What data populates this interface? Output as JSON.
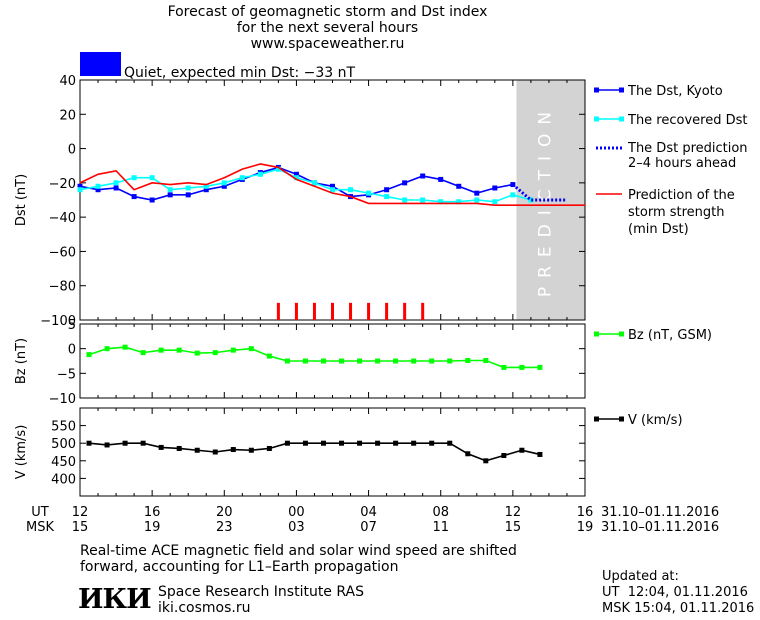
{
  "header": {
    "line1": "Forecast of geomagnetic storm and Dst index",
    "line2": "for the next several hours",
    "line3": "www.spaceweather.ru",
    "status": "Quiet, expected min Dst: −33 nT",
    "status_color": "#0000ff"
  },
  "legend": {
    "dst_kyoto": "The Dst, Kyoto",
    "recovered": "The recovered Dst",
    "pred_line1": "The Dst prediction",
    "pred_line2": "2–4 hours ahead",
    "storm_line1": "Prediction of the",
    "storm_line2": "storm strength",
    "storm_line3": "(min Dst)",
    "bz": "Bz (nT, GSM)",
    "v": "V (km/s)"
  },
  "prediction_label": "PREDICTION",
  "time_axis": {
    "ut_label": "UT",
    "msk_label": "MSK",
    "date_ut": "31.10–01.11.2016",
    "date_msk": "31.10–01.11.2016"
  },
  "footer": {
    "note_line1": "Real-time ACE magnetic field and solar wind speed are shifted",
    "note_line2": "forward, accounting for L1–Earth propagation",
    "institute": "Space Research Institute RAS",
    "site": "iki.cosmos.ru",
    "logo": "ИКИ",
    "updated_label": "Updated at:",
    "updated_ut": "UT  12:04, 01.11.2016",
    "updated_msk": "MSK 15:04, 01.11.2016"
  },
  "chart_data": {
    "type": "line",
    "x_unit": "hours from 12 UT 31.10.2016",
    "x_range": [
      0,
      28
    ],
    "x_ticks": [
      0,
      4,
      8,
      12,
      16,
      20,
      24,
      28
    ],
    "x_tick_labels_ut": [
      "12",
      "16",
      "20",
      "00",
      "04",
      "08",
      "12",
      "16"
    ],
    "x_tick_labels_msk": [
      "15",
      "19",
      "23",
      "03",
      "07",
      "11",
      "15",
      "19"
    ],
    "prediction_zone": [
      24.2,
      28
    ],
    "panels": [
      {
        "id": "dst",
        "ylabel": "Dst (nT)",
        "ylim": [
          -100,
          40
        ],
        "yticks": [
          40,
          20,
          0,
          -20,
          -40,
          -60,
          -80,
          -100
        ],
        "series": [
          {
            "name": "The Dst, Kyoto",
            "color": "#0000ff",
            "style": "line-square",
            "x": [
              0,
              1,
              2,
              3,
              4,
              5,
              6,
              7,
              8,
              9,
              10,
              11,
              12,
              13,
              14,
              15,
              16,
              17,
              18,
              19,
              20,
              21,
              22,
              23,
              24
            ],
            "y": [
              -22,
              -24,
              -23,
              -28,
              -30,
              -27,
              -27,
              -24,
              -22,
              -18,
              -14,
              -11,
              -15,
              -20,
              -22,
              -28,
              -27,
              -24,
              -20,
              -16,
              -18,
              -22,
              -26,
              -23,
              -21
            ]
          },
          {
            "name": "The recovered Dst",
            "color": "#00ffff",
            "style": "line-square",
            "x": [
              0,
              1,
              2,
              3,
              4,
              5,
              6,
              7,
              8,
              9,
              10,
              11,
              12,
              13,
              14,
              15,
              16,
              17,
              18,
              19,
              20,
              21,
              22,
              23,
              24,
              25
            ],
            "y": [
              -24,
              -22,
              -20,
              -17,
              -17,
              -24,
              -23,
              -22,
              -20,
              -17,
              -15,
              -12,
              -17,
              -20,
              -24,
              -24,
              -26,
              -28,
              -30,
              -30,
              -31,
              -31,
              -30,
              -31,
              -27,
              -30
            ]
          },
          {
            "name": "The Dst prediction 2–4 hours ahead",
            "color": "#0000ff",
            "style": "dotted",
            "x": [
              24,
              25,
              26,
              27
            ],
            "y": [
              -21,
              -30,
              -30,
              -30
            ]
          },
          {
            "name": "Prediction of the storm strength (min Dst)",
            "color": "#ff0000",
            "style": "line",
            "x": [
              0,
              1,
              2,
              3,
              4,
              5,
              6,
              7,
              8,
              9,
              10,
              11,
              12,
              13,
              14,
              15,
              16,
              17,
              18,
              19,
              20,
              21,
              22,
              23,
              24,
              28
            ],
            "y": [
              -20,
              -15,
              -13,
              -24,
              -20,
              -21,
              -20,
              -21,
              -17,
              -12,
              -9,
              -11,
              -18,
              -22,
              -26,
              -28,
              -32,
              -32,
              -32,
              -32,
              -32,
              -32,
              -32,
              -33,
              -33,
              -33
            ]
          }
        ],
        "markers": {
          "color": "#ff0000",
          "x": [
            11,
            12,
            13,
            14,
            15,
            16,
            17,
            18,
            19
          ],
          "y_from": -100,
          "y_to": -90
        }
      },
      {
        "id": "bz",
        "ylabel": "Bz (nT)",
        "ylim": [
          -10,
          5
        ],
        "yticks": [
          5,
          0,
          -5,
          -10
        ],
        "series": [
          {
            "name": "Bz (nT, GSM)",
            "color": "#00ff00",
            "style": "line-square",
            "x": [
              0.5,
              1.5,
              2.5,
              3.5,
              4.5,
              5.5,
              6.5,
              7.5,
              8.5,
              9.5,
              10.5,
              11.5,
              12.5,
              13.5,
              14.5,
              15.5,
              16.5,
              17.5,
              18.5,
              19.5,
              20.5,
              21.5,
              22.5,
              23.5,
              24.5,
              25.5
            ],
            "y": [
              -1.2,
              0,
              0.3,
              -0.8,
              -0.3,
              -0.3,
              -0.9,
              -0.8,
              -0.3,
              0,
              -1.5,
              -2.5,
              -2.5,
              -2.5,
              -2.5,
              -2.5,
              -2.5,
              -2.5,
              -2.5,
              -2.5,
              -2.5,
              -2.4,
              -2.4,
              -3.8,
              -3.8,
              -3.8
            ]
          }
        ]
      },
      {
        "id": "v",
        "ylabel": "V (km/s)",
        "ylim": [
          350,
          600
        ],
        "yticks": [
          550,
          500,
          450,
          400
        ],
        "series": [
          {
            "name": "V (km/s)",
            "color": "#000000",
            "style": "line-square",
            "x": [
              0.5,
              1.5,
              2.5,
              3.5,
              4.5,
              5.5,
              6.5,
              7.5,
              8.5,
              9.5,
              10.5,
              11.5,
              12.5,
              13.5,
              14.5,
              15.5,
              16.5,
              17.5,
              18.5,
              19.5,
              20.5,
              21.5,
              22.5,
              23.5,
              24.5,
              25.5
            ],
            "y": [
              500,
              495,
              500,
              500,
              488,
              485,
              480,
              475,
              482,
              480,
              485,
              500,
              500,
              500,
              500,
              500,
              500,
              500,
              500,
              500,
              500,
              470,
              450,
              465,
              480,
              468
            ]
          }
        ]
      }
    ]
  }
}
